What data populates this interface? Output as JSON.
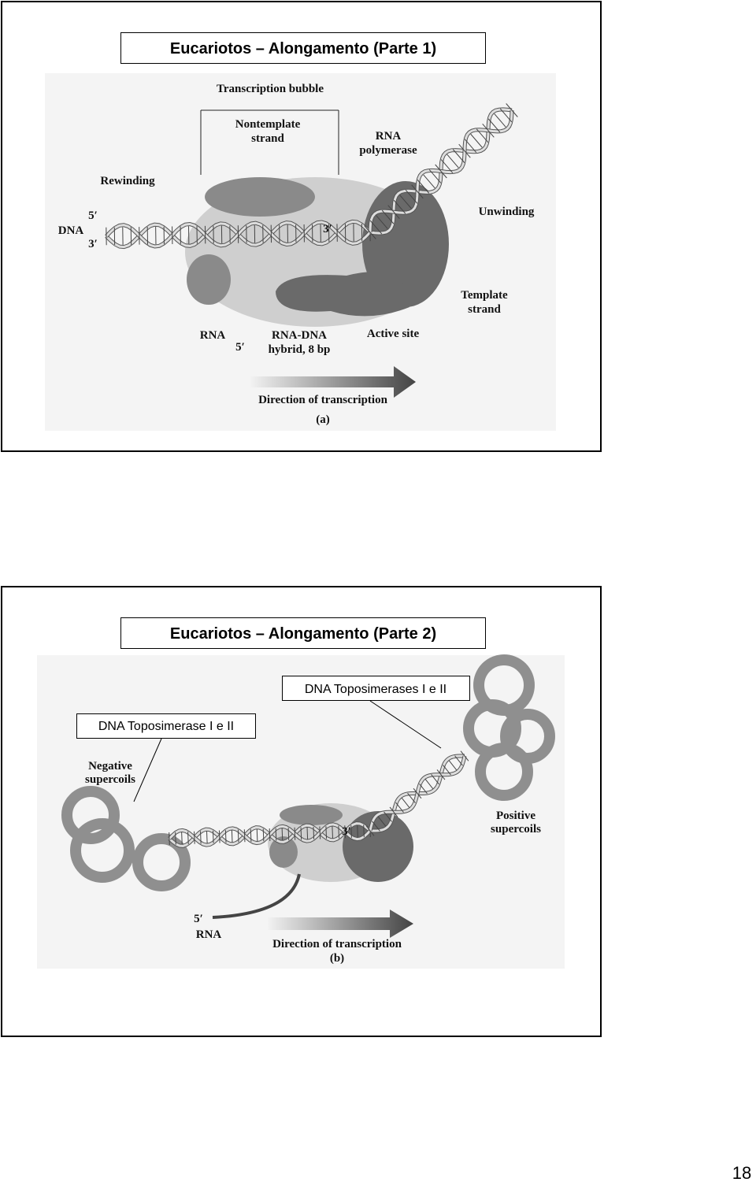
{
  "slides": [
    {
      "title": "Eucariotos – Alongamento (Parte 1)",
      "figure": {
        "labels": [
          {
            "lines": [
              "Transcription bubble"
            ]
          },
          {
            "lines": [
              "Nontemplate",
              "strand"
            ]
          },
          {
            "lines": [
              "RNA",
              "polymerase"
            ]
          },
          {
            "lines": [
              "Rewinding"
            ]
          },
          {
            "lines": [
              "Unwinding"
            ]
          },
          {
            "lines": [
              "DNA"
            ]
          },
          {
            "lines": [
              "5′"
            ]
          },
          {
            "lines": [
              "3′"
            ]
          },
          {
            "lines": [
              "3′"
            ]
          },
          {
            "lines": [
              "Template",
              "strand"
            ]
          },
          {
            "lines": [
              "RNA"
            ]
          },
          {
            "lines": [
              "5′"
            ]
          },
          {
            "lines": [
              "RNA-DNA",
              "hybrid, 8 bp"
            ]
          },
          {
            "lines": [
              "Active site"
            ]
          },
          {
            "lines": [
              "Direction of transcription"
            ]
          },
          {
            "lines": [
              "(a)"
            ]
          }
        ]
      }
    },
    {
      "title": "Eucariotos – Alongamento (Parte 2)",
      "callouts": [
        "DNA Toposimerases I e II",
        "DNA Toposimerase I e II"
      ],
      "figure": {
        "labels": [
          {
            "lines": [
              "Negative",
              "supercoils"
            ]
          },
          {
            "lines": [
              "Positive",
              "supercoils"
            ]
          },
          {
            "lines": [
              "3′"
            ]
          },
          {
            "lines": [
              "5′"
            ]
          },
          {
            "lines": [
              "RNA"
            ]
          },
          {
            "lines": [
              "Direction of transcription"
            ]
          },
          {
            "lines": [
              "(b)"
            ]
          }
        ]
      }
    }
  ],
  "page_number": "18"
}
